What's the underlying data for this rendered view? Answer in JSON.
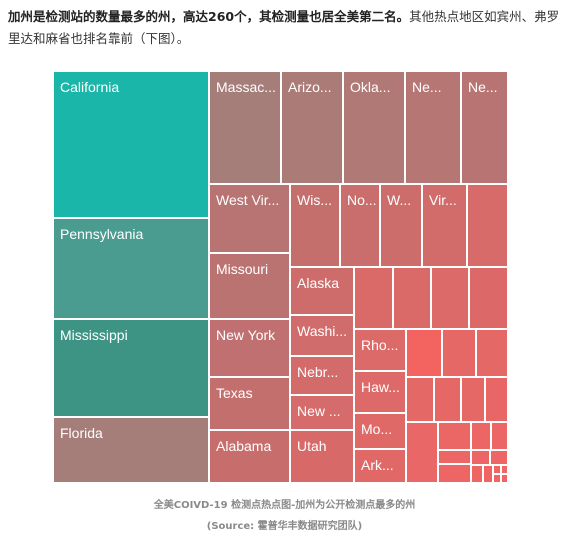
{
  "intro": {
    "bold_part": "加州是检测站的数量最多的州，高达260个，其检测量也居全美第二名。",
    "rest": "其他热点地区如宾州、弗罗里达和麻省也排名靠前（下图）。"
  },
  "chart_data": {
    "type": "treemap",
    "note": "Sizes are relative area shares estimated from the picture; only labelled tiles are named.",
    "colors": {
      "teal_bright": "#1ab6a9",
      "teal": "#4b9c90",
      "teal_dark": "#3e9484",
      "mauve": "#a57d79",
      "rose": "#c26e6c",
      "salmon": "#e06967",
      "coral": "#f36461"
    },
    "items": [
      {
        "label": "California",
        "color": "#1ab6a9"
      },
      {
        "label": "Pennsylvania",
        "color": "#4b9c90"
      },
      {
        "label": "Mississippi",
        "color": "#3e9484"
      },
      {
        "label": "Florida",
        "color": "#a57d79"
      },
      {
        "label": "Massac...",
        "color": "#a57d79"
      },
      {
        "label": "Arizo...",
        "color": "#ab7b78"
      },
      {
        "label": "Okla...",
        "color": "#b07976"
      },
      {
        "label": "Ne...",
        "color": "#b57674"
      },
      {
        "label": "Ne...",
        "color": "#b87473"
      },
      {
        "label": "West Vir...",
        "color": "#b87473"
      },
      {
        "label": "Wis...",
        "color": "#c56f6d"
      },
      {
        "label": "No...",
        "color": "#c96e6c"
      },
      {
        "label": "W...",
        "color": "#cd6d6b"
      },
      {
        "label": "Vir...",
        "color": "#d26c6a"
      },
      {
        "label": "Missouri",
        "color": "#bb7371"
      },
      {
        "label": "New York",
        "color": "#c07070"
      },
      {
        "label": "Texas",
        "color": "#c36f6e"
      },
      {
        "label": "Alabama",
        "color": "#c76e6d"
      },
      {
        "label": "Alaska",
        "color": "#cd6c6b"
      },
      {
        "label": "Washi...",
        "color": "#d06c6b"
      },
      {
        "label": "Nebr...",
        "color": "#d36b6a"
      },
      {
        "label": "New ...",
        "color": "#d56b6a"
      },
      {
        "label": "Utah",
        "color": "#d76a69"
      },
      {
        "label": "Rho...",
        "color": "#dc6a68"
      },
      {
        "label": "Haw...",
        "color": "#dd6968"
      },
      {
        "label": "Mo...",
        "color": "#df6967"
      },
      {
        "label": "Ark...",
        "color": "#e06967"
      }
    ]
  },
  "caption": {
    "line1": "全美COIVD-19 检测点热点图-加州为公开检测点最多的州",
    "line2": "(Source: 霍普华丰数据研究团队)"
  }
}
